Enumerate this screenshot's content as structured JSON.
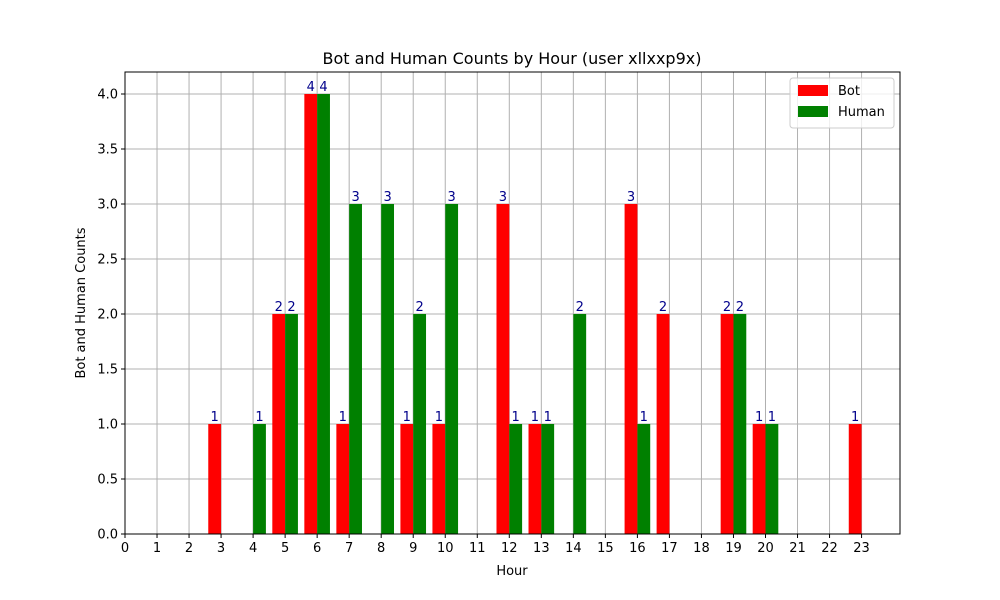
{
  "chart_data": {
    "type": "bar",
    "title": "Bot and Human Counts by Hour (user xllxxp9x)",
    "xlabel": "Hour",
    "ylabel": "Bot and Human Counts",
    "ylim": [
      0,
      4.2
    ],
    "yticks": [
      "0.0",
      "0.5",
      "1.0",
      "1.5",
      "2.0",
      "2.5",
      "3.0",
      "3.5",
      "4.0"
    ],
    "categories": [
      "0",
      "1",
      "2",
      "3",
      "4",
      "5",
      "6",
      "7",
      "8",
      "9",
      "10",
      "11",
      "12",
      "13",
      "14",
      "15",
      "16",
      "17",
      "18",
      "19",
      "20",
      "21",
      "22",
      "23"
    ],
    "series": [
      {
        "name": "Bot",
        "color": "#ff0000",
        "values": [
          0,
          0,
          0,
          1,
          0,
          2,
          4,
          1,
          0,
          1,
          1,
          0,
          3,
          1,
          0,
          0,
          3,
          2,
          0,
          2,
          1,
          0,
          0,
          1
        ]
      },
      {
        "name": "Human",
        "color": "#008000",
        "values": [
          0,
          0,
          0,
          0,
          1,
          2,
          4,
          3,
          3,
          2,
          3,
          0,
          1,
          1,
          2,
          0,
          1,
          0,
          0,
          2,
          1,
          0,
          0,
          0
        ]
      }
    ],
    "grid": true,
    "legend_position": "top-right",
    "data_label_color": "#00008b"
  }
}
